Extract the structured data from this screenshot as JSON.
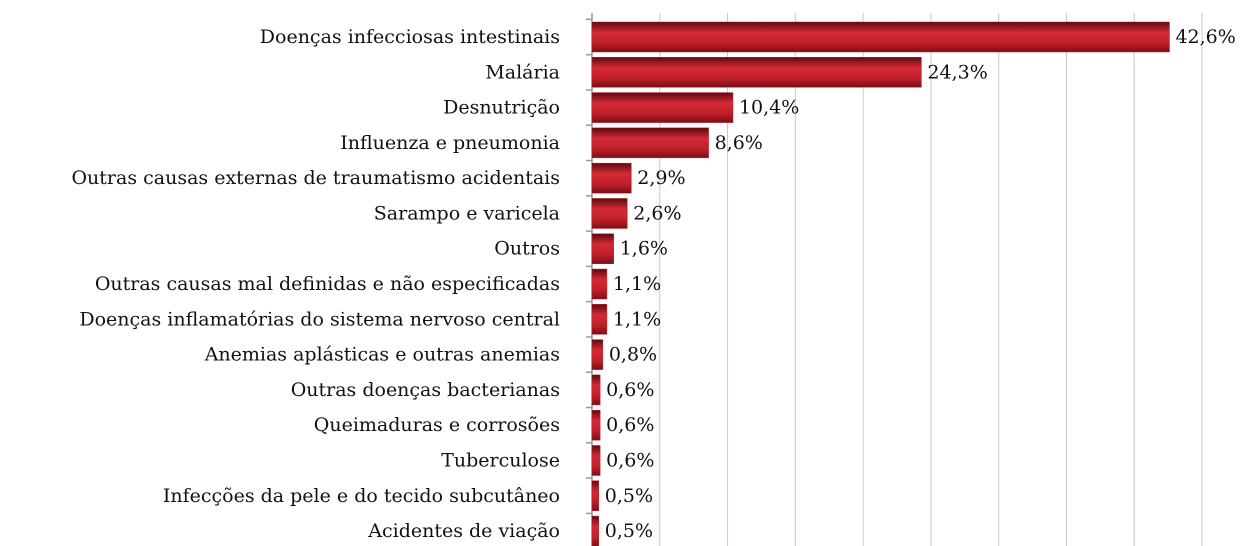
{
  "chart_data": {
    "type": "barh",
    "categories": [
      "Doenças infecciosas intestinais",
      "Malária",
      "Desnutrição",
      "Influenza e pneumonia",
      "Outras causas externas de traumatismo acidentais",
      "Sarampo e varicela",
      "Outros",
      "Outras causas mal definidas e não especificadas",
      "Doenças inflamatórias do sistema nervoso central",
      "Anemias aplásticas e outras anemias",
      "Outras doenças bacterianas",
      "Queimaduras e corrosões",
      "Tuberculose",
      "Infecções da pele e do tecido subcutâneo",
      "Acidentes de viação"
    ],
    "values": [
      42.6,
      24.3,
      10.4,
      8.6,
      2.9,
      2.6,
      1.6,
      1.1,
      1.1,
      0.8,
      0.6,
      0.6,
      0.6,
      0.5,
      0.5
    ],
    "value_labels": [
      "42,6%",
      "24,3%",
      "10,4%",
      "8,6%",
      "2,9%",
      "2,6%",
      "1,6%",
      "1,1%",
      "1,1%",
      "0,8%",
      "0,6%",
      "0,6%",
      "0,6%",
      "0,5%",
      "0,5%"
    ],
    "color": "#c0202a",
    "xlim": [
      0,
      45
    ],
    "xticks": [
      0,
      5,
      10,
      15,
      20,
      25,
      30,
      35,
      40,
      45
    ],
    "grid": true
  }
}
